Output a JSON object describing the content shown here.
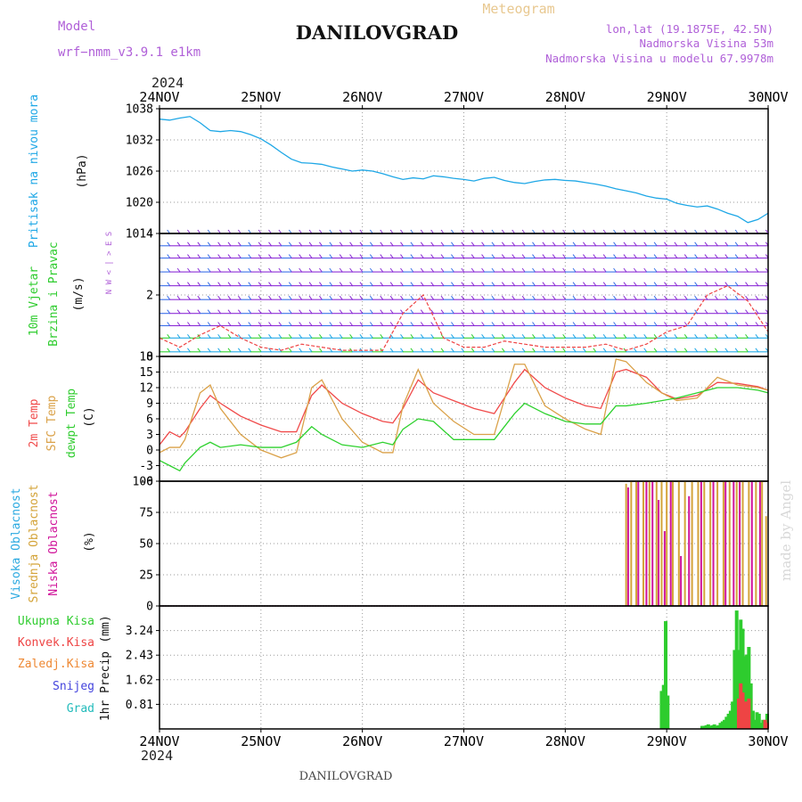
{
  "header": {
    "model_label": "Model",
    "model_name": "wrf−nmm_v3.9.1  e1km",
    "title": "DANILOVGRAD",
    "product": "Meteogram",
    "lonlat": "lon,lat (19.1875E, 42.5N)",
    "altitude": "Nadmorska Visina 53m",
    "model_altitude": "Nadmorska Visina u modelu 67.9978m",
    "year_top": "2024",
    "year_bottom": "2024",
    "footer_title": "DANILOVGRAD",
    "credit": "made by Angel"
  },
  "colors": {
    "pressure": "#1ea7e6",
    "t2m": "#f04a4a",
    "sfc": "#daa148",
    "dewpt": "#2ed12e",
    "cloud_high": "#2aa9e0",
    "cloud_mid": "#d4a43a",
    "cloud_low": "#d0149a",
    "precip_total": "#2ecc2e",
    "precip_conv": "#ee4444",
    "precip_frz": "#ee8833",
    "snow": "#4444dd",
    "grad": "#22bbbb",
    "model": "#b060d8",
    "product": "#e8c890",
    "wind_label": "#2ecc2e",
    "credit": "#d8d8d8"
  },
  "chart_data": [
    {
      "type": "line",
      "panel": "pressure",
      "title": "",
      "x_ticks": [
        "24NOV",
        "25NOV",
        "26NOV",
        "27NOV",
        "28NOV",
        "29NOV",
        "30NOV"
      ],
      "ylabel": "Pritisak na nivou mora",
      "unit": "(hPa)",
      "ylim": [
        1014,
        1038
      ],
      "yticks": [
        1014,
        1020,
        1026,
        1032,
        1038
      ],
      "grid": true,
      "series": [
        {
          "x": [
            0,
            0.1,
            0.2,
            0.3,
            0.4,
            0.5,
            0.6,
            0.7,
            0.8,
            0.9,
            1.0,
            1.1,
            1.2,
            1.3,
            1.4,
            1.5,
            1.6,
            1.7,
            1.8,
            1.9,
            2.0,
            2.1,
            2.2,
            2.3,
            2.4,
            2.5,
            2.6,
            2.7,
            2.8,
            2.9,
            3.0,
            3.1,
            3.2,
            3.3,
            3.4,
            3.5,
            3.6,
            3.7,
            3.8,
            3.9,
            4.0,
            4.1,
            4.2,
            4.3,
            4.4,
            4.5,
            4.6,
            4.7,
            4.8,
            4.9,
            5.0,
            5.1,
            5.2,
            5.3,
            5.4,
            5.5,
            5.6,
            5.7,
            5.8,
            5.9,
            6.0
          ],
          "values": [
            1036.0,
            1035.8,
            1036.2,
            1036.5,
            1035.3,
            1033.8,
            1033.6,
            1033.8,
            1033.6,
            1033.0,
            1032.2,
            1031.0,
            1029.6,
            1028.3,
            1027.6,
            1027.5,
            1027.3,
            1026.8,
            1026.4,
            1026.0,
            1026.2,
            1026.0,
            1025.5,
            1024.9,
            1024.4,
            1024.7,
            1024.5,
            1025.1,
            1024.9,
            1024.6,
            1024.4,
            1024.1,
            1024.6,
            1024.8,
            1024.2,
            1023.8,
            1023.6,
            1024.0,
            1024.3,
            1024.4,
            1024.2,
            1024.1,
            1023.8,
            1023.5,
            1023.1,
            1022.6,
            1022.2,
            1021.8,
            1021.2,
            1020.8,
            1020.6,
            1019.8,
            1019.4,
            1019.1,
            1019.3,
            1018.7,
            1017.9,
            1017.3,
            1016.1,
            1016.7,
            1017.9
          ]
        }
      ]
    },
    {
      "type": "line",
      "panel": "wind",
      "title": "",
      "x_ticks": [
        "24NOV",
        "25NOV",
        "26NOV",
        "27NOV",
        "28NOV",
        "29NOV",
        "30NOV"
      ],
      "ylabel": "10m Vjetar Brzina i Pravac",
      "unit": "(m/s)",
      "ylim": [
        0,
        4
      ],
      "yticks": [
        0,
        2,
        4
      ],
      "grid": true,
      "compass": [
        "N",
        "W",
        "<",
        "|",
        ">",
        "E",
        "S"
      ],
      "series": [
        {
          "x": [
            0,
            0.2,
            0.4,
            0.6,
            0.8,
            1.0,
            1.2,
            1.4,
            1.6,
            1.8,
            2.0,
            2.2,
            2.4,
            2.6,
            2.8,
            3.0,
            3.2,
            3.4,
            3.6,
            3.8,
            4.0,
            4.2,
            4.4,
            4.6,
            4.8,
            5.0,
            5.2,
            5.4,
            5.6,
            5.8,
            6.0
          ],
          "values": [
            0.6,
            0.3,
            0.7,
            1.0,
            0.6,
            0.3,
            0.2,
            0.4,
            0.3,
            0.2,
            0.2,
            0.2,
            1.4,
            2.0,
            0.6,
            0.3,
            0.3,
            0.5,
            0.4,
            0.3,
            0.3,
            0.3,
            0.4,
            0.2,
            0.4,
            0.8,
            1.0,
            2.0,
            2.3,
            1.8,
            0.8
          ]
        }
      ]
    },
    {
      "type": "line",
      "panel": "temperature",
      "title": "",
      "x_ticks": [
        "24NOV",
        "25NOV",
        "26NOV",
        "27NOV",
        "28NOV",
        "29NOV",
        "30NOV"
      ],
      "ylabel": "2m Temp / SFC Temp / dewpt Temp",
      "unit": "(C)",
      "ylim": [
        -6,
        18
      ],
      "yticks": [
        -6,
        -3,
        0,
        3,
        6,
        9,
        12,
        15,
        18
      ],
      "grid": true,
      "series": [
        {
          "name": "2m Temp",
          "x": [
            0,
            0.1,
            0.2,
            0.25,
            0.4,
            0.5,
            0.6,
            0.8,
            1.0,
            1.2,
            1.35,
            1.5,
            1.6,
            1.8,
            2.0,
            2.2,
            2.3,
            2.4,
            2.55,
            2.7,
            2.9,
            3.1,
            3.3,
            3.5,
            3.6,
            3.8,
            4.0,
            4.2,
            4.35,
            4.5,
            4.6,
            4.8,
            4.95,
            5.1,
            5.3,
            5.5,
            5.7,
            5.9,
            6.0
          ],
          "values": [
            1.0,
            3.5,
            2.5,
            3.5,
            8.0,
            10.5,
            9.0,
            6.5,
            4.8,
            3.5,
            3.5,
            10.5,
            12.5,
            9.0,
            7.0,
            5.5,
            5.2,
            8.0,
            13.5,
            11.0,
            9.5,
            8.0,
            7.0,
            13.0,
            15.5,
            12.0,
            10.0,
            8.5,
            8.0,
            15.0,
            15.5,
            14.0,
            11.0,
            9.8,
            10.5,
            13.0,
            12.8,
            12.2,
            11.5
          ]
        },
        {
          "name": "SFC Temp",
          "x": [
            0,
            0.1,
            0.2,
            0.25,
            0.4,
            0.5,
            0.6,
            0.8,
            1.0,
            1.2,
            1.35,
            1.5,
            1.6,
            1.8,
            2.0,
            2.2,
            2.3,
            2.4,
            2.55,
            2.7,
            2.9,
            3.1,
            3.3,
            3.5,
            3.6,
            3.8,
            4.0,
            4.2,
            4.35,
            4.5,
            4.6,
            4.8,
            4.95,
            5.1,
            5.3,
            5.5,
            5.7,
            5.9,
            6.0
          ],
          "values": [
            -0.5,
            0.5,
            0.5,
            2.0,
            11.0,
            12.5,
            8.0,
            3.0,
            0.0,
            -1.5,
            -0.5,
            12.0,
            13.5,
            6.0,
            1.5,
            -0.5,
            -0.5,
            8.5,
            15.5,
            9.0,
            5.5,
            3.0,
            3.0,
            16.5,
            16.5,
            8.5,
            6.0,
            4.0,
            3.0,
            17.5,
            17.0,
            13.0,
            11.0,
            9.5,
            10.0,
            14.0,
            12.5,
            12.0,
            11.5
          ]
        },
        {
          "name": "dewpt Temp",
          "x": [
            0,
            0.1,
            0.2,
            0.25,
            0.4,
            0.5,
            0.6,
            0.8,
            1.0,
            1.2,
            1.35,
            1.5,
            1.6,
            1.8,
            2.0,
            2.2,
            2.3,
            2.4,
            2.55,
            2.7,
            2.9,
            3.1,
            3.3,
            3.5,
            3.6,
            3.8,
            4.0,
            4.2,
            4.35,
            4.5,
            4.6,
            4.8,
            4.95,
            5.1,
            5.3,
            5.5,
            5.7,
            5.9,
            6.0
          ],
          "values": [
            -2.0,
            -3.0,
            -4.0,
            -2.5,
            0.5,
            1.5,
            0.5,
            1.0,
            0.5,
            0.5,
            1.5,
            4.5,
            3.0,
            1.0,
            0.5,
            1.5,
            1.0,
            4.0,
            6.0,
            5.5,
            2.0,
            2.0,
            2.0,
            7.0,
            9.0,
            7.0,
            5.5,
            5.0,
            5.0,
            8.5,
            8.5,
            9.0,
            9.5,
            10.0,
            11.0,
            12.0,
            12.0,
            11.5,
            11.0
          ]
        }
      ]
    },
    {
      "type": "bar",
      "panel": "cloud",
      "title": "",
      "x_ticks": [
        "24NOV",
        "25NOV",
        "26NOV",
        "27NOV",
        "28NOV",
        "29NOV",
        "30NOV"
      ],
      "ylabel": "Visoka Oblacnost / Srednja Oblacnost / Niska Oblacnost",
      "unit": "(%)",
      "ylim": [
        0,
        100
      ],
      "yticks": [
        0,
        25,
        50,
        75,
        100
      ],
      "grid": true,
      "series": [
        {
          "name": "Srednja Oblacnost",
          "x": [
            4.6,
            4.65,
            4.7,
            4.77,
            4.83,
            4.9,
            4.95,
            5.0,
            5.06,
            5.12,
            5.18,
            5.25,
            5.31,
            5.37,
            5.43,
            5.5,
            5.56,
            5.62,
            5.69,
            5.75,
            5.81,
            5.88,
            5.94,
            5.98
          ],
          "values": [
            98,
            100,
            100,
            100,
            100,
            100,
            100,
            100,
            100,
            100,
            100,
            100,
            100,
            100,
            100,
            100,
            100,
            100,
            100,
            100,
            100,
            100,
            100,
            72
          ]
        },
        {
          "name": "Niska Oblacnost",
          "x": [
            4.62,
            4.72,
            4.8,
            4.86,
            4.92,
            4.98,
            5.04,
            5.14,
            5.22,
            5.34,
            5.46,
            5.58,
            5.66,
            5.72,
            5.84,
            5.92
          ],
          "values": [
            95,
            100,
            100,
            100,
            85,
            60,
            100,
            40,
            88,
            100,
            100,
            100,
            100,
            100,
            100,
            100
          ]
        },
        {
          "name": "Visoka Oblacnost",
          "x": [
            0.0,
            6.0
          ],
          "values": [
            0,
            0
          ]
        }
      ]
    },
    {
      "type": "bar",
      "panel": "precip",
      "title": "",
      "x_ticks": [
        "24NOV",
        "25NOV",
        "26NOV",
        "27NOV",
        "28NOV",
        "29NOV",
        "30NOV"
      ],
      "ylabel": "1hr Precip",
      "unit": "(mm)",
      "ylim": [
        0,
        4.05
      ],
      "yticks": [
        0.81,
        1.62,
        2.43,
        3.24
      ],
      "grid": true,
      "series": [
        {
          "name": "Ukupna Kisa",
          "x": [
            4.95,
            4.97,
            4.99,
            5.01,
            5.35,
            5.37,
            5.39,
            5.41,
            5.43,
            5.45,
            5.47,
            5.49,
            5.51,
            5.53,
            5.55,
            5.57,
            5.59,
            5.61,
            5.63,
            5.65,
            5.67,
            5.69,
            5.71,
            5.73,
            5.75,
            5.77,
            5.79,
            5.81,
            5.83,
            5.85,
            5.87,
            5.89,
            5.91,
            5.93,
            5.95,
            5.97,
            5.99
          ],
          "values": [
            1.25,
            1.45,
            3.55,
            1.1,
            0.1,
            0.1,
            0.12,
            0.15,
            0.1,
            0.12,
            0.15,
            0.1,
            0.12,
            0.2,
            0.25,
            0.3,
            0.4,
            0.5,
            0.6,
            0.9,
            2.6,
            3.9,
            2.6,
            3.6,
            3.3,
            2.4,
            2.45,
            2.7,
            1.5,
            0.6,
            0.3,
            0.55,
            0.5,
            0.2,
            0.3,
            0.25,
            0.5
          ]
        },
        {
          "name": "Konvek.Kisa",
          "x": [
            5.71,
            5.73,
            5.75,
            5.77,
            5.79,
            5.81,
            5.97,
            5.99
          ],
          "values": [
            1.0,
            1.5,
            1.2,
            0.9,
            0.9,
            1.0,
            0.3,
            0.2
          ]
        },
        {
          "name": "Zaledj.Kisa",
          "x": [],
          "values": []
        },
        {
          "name": "Snijeg",
          "x": [],
          "values": []
        },
        {
          "name": "Grad",
          "x": [],
          "values": []
        }
      ]
    }
  ],
  "legend": {
    "pressure_label": "Pritisak na nivou mora",
    "pressure_unit": "(hPa)",
    "wind_label_1": "10m Vjetar",
    "wind_label_2": "Brzina i Pravac",
    "wind_unit": "(m/s)",
    "temp_label_1": "2m Temp",
    "temp_label_2": "SFC Temp",
    "temp_label_3": "dewpt Temp",
    "temp_unit": "(C)",
    "cloud_label_1": "Visoka Oblacnost",
    "cloud_label_2": "Srednja Oblacnost",
    "cloud_label_3": "Niska Oblacnost",
    "cloud_unit": "(%)",
    "precip_items": [
      "Ukupna Kisa",
      "Konvek.Kisa",
      "Zaledj.Kisa",
      "Snijeg",
      "Grad"
    ],
    "precip_label": "1hr Precip",
    "precip_unit": "(mm)"
  }
}
